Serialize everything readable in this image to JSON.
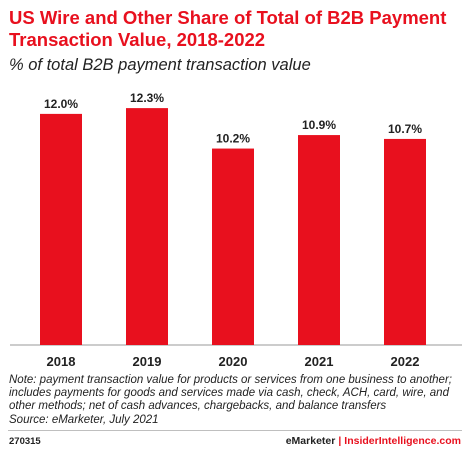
{
  "chart_data": {
    "type": "bar",
    "title": "US Wire and Other Share of Total of B2B Payment Transaction Value, 2018-2022",
    "subtitle": "% of total B2B payment transaction value",
    "categories": [
      "2018",
      "2019",
      "2020",
      "2021",
      "2022"
    ],
    "values": [
      12.0,
      12.3,
      10.2,
      10.9,
      10.7
    ],
    "value_labels": [
      "12.0%",
      "12.3%",
      "10.2%",
      "10.9%",
      "10.7%"
    ],
    "xlabel": "",
    "ylabel": "",
    "ylim": [
      0,
      13.5
    ],
    "grid": false,
    "bar_color": "#e8101e"
  },
  "note": "Note: payment transaction value for products or services from one business to another; includes payments for goods and services made via cash, check, ACH, card, wire, and other methods; net of cash advances, chargebacks, and balance transfers",
  "source": "Source: eMarketer, July 2021",
  "footer": {
    "chart_id": "270315",
    "brand_left": "eMarketer",
    "separator": "|",
    "brand_right": "InsiderIntelligence.com"
  }
}
